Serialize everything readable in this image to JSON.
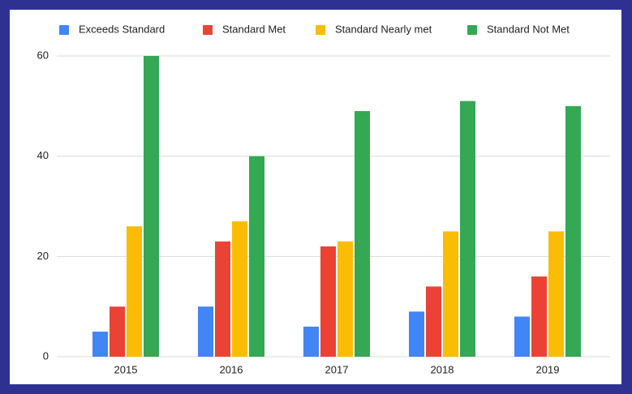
{
  "chart_data": {
    "type": "bar",
    "categories": [
      "2015",
      "2016",
      "2017",
      "2018",
      "2019"
    ],
    "series": [
      {
        "name": "Exceeds Standard",
        "color": "#4285f4",
        "values": [
          5,
          10,
          6,
          9,
          8
        ]
      },
      {
        "name": "Standard Met",
        "color": "#ea4335",
        "values": [
          10,
          23,
          22,
          14,
          16
        ]
      },
      {
        "name": "Standard Nearly met",
        "color": "#fbbc04",
        "values": [
          26,
          27,
          23,
          25,
          25
        ]
      },
      {
        "name": "Standard Not Met",
        "color": "#34a853",
        "values": [
          60,
          40,
          49,
          51,
          50
        ]
      }
    ],
    "ylim": [
      0,
      60
    ],
    "yticks": [
      0,
      20,
      40,
      60
    ],
    "grid": true,
    "legend": "top"
  }
}
